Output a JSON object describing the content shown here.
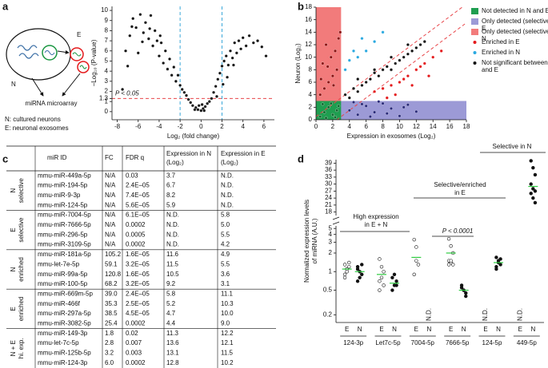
{
  "panel_labels": [
    "a",
    "b",
    "c",
    "d"
  ],
  "diagram": {
    "N": "N",
    "E": "E",
    "caption": "miRNA microarray",
    "legend": [
      "N: cultured neurons",
      "E: neuronal exosomes"
    ]
  },
  "chart_data": [
    {
      "type": "scatter",
      "x_label": "Log₂ (fold change)",
      "y_label": "−Log₁₀ (P-value)",
      "annotation": "P < 0.05",
      "xlim": [
        -8.5,
        7
      ],
      "xticks": [
        -8,
        -6,
        -4,
        -2,
        0,
        2,
        4,
        6
      ],
      "ylim": [
        -0.8,
        10.4
      ],
      "yticks": [
        0,
        1,
        1.3,
        2,
        3,
        4,
        5,
        6,
        7,
        8,
        9,
        10
      ],
      "vlines": [
        -2,
        2
      ],
      "vline_color": "#3aa7d9",
      "hline": 1.3,
      "hline_color": "#e8464a",
      "series": [
        {
          "color": "#111111",
          "x": [
            -7.5,
            -7,
            -6.8,
            -6.5,
            -6.2,
            -6,
            -5.8,
            -5.5,
            -5.3,
            -5,
            -4.8,
            -4.6,
            -4.4,
            -4.2,
            -4,
            -3.8,
            -3.6,
            -3.4,
            -3.2,
            -3,
            -2.8,
            -2.6,
            -2.4,
            -2.2,
            -2,
            -1.8,
            -1.6,
            -1.4,
            -1.2,
            -1,
            -5.6,
            -6.6,
            -4.9,
            -3.9,
            -7.2,
            -0.8,
            -0.5,
            -0.3,
            0,
            0.2,
            0.4,
            0.6,
            -0.2,
            0.3,
            0.8,
            -0.6,
            0.1,
            1,
            1.2,
            1.4,
            1.6,
            1.8,
            2,
            2.2,
            2.4,
            2.6,
            2.8,
            3,
            3.2,
            3.4,
            3.6,
            3.8,
            4,
            4.3,
            4.6,
            5,
            5.4,
            5.8,
            6.2,
            2.5,
            3.1,
            1.5,
            2.1
          ],
          "values": [
            2.2,
            4.5,
            7.5,
            9.2,
            8.3,
            5.8,
            9.6,
            7.8,
            8.8,
            7.2,
            9.5,
            6.5,
            8,
            7,
            5.5,
            6.8,
            4.8,
            6,
            4.2,
            5.2,
            3.6,
            4.4,
            3,
            3.6,
            2.6,
            2.2,
            1.9,
            1.6,
            1.2,
            0.9,
            6.9,
            8.4,
            8.2,
            7.5,
            6,
            0.6,
            0.4,
            0.2,
            0.1,
            0.3,
            0.5,
            0.8,
            0.6,
            0.1,
            1,
            0.2,
            0.7,
            1.3,
            1.9,
            2.5,
            3.2,
            3.8,
            4.5,
            5,
            5.5,
            4.6,
            6,
            5.3,
            6.8,
            5.8,
            7,
            6.2,
            7.3,
            6.5,
            7.5,
            6.8,
            7,
            6.4,
            5.5,
            3.4,
            4.6,
            1.5,
            2.7
          ]
        }
      ]
    },
    {
      "type": "scatter",
      "x_label": "Expression in exosomes (Log₂)",
      "y_label": "Neuron (Log₂)",
      "xlim": [
        0,
        18
      ],
      "xticks": [
        0,
        2,
        4,
        6,
        8,
        10,
        12,
        14,
        16,
        18
      ],
      "ylim": [
        0,
        18
      ],
      "yticks": [
        0,
        2,
        4,
        6,
        8,
        10,
        12,
        14,
        16,
        18
      ],
      "detection_threshold": 3,
      "diagonals": [
        0.5,
        -2.5
      ],
      "diagonal_color": "#e8464a",
      "series": [
        {
          "name": "Not detected in N and E",
          "marker": "square",
          "color": "#1f9e50",
          "point_color": "#0d6b2e",
          "x": [
            0.5,
            1,
            1.5,
            2,
            2.5,
            0.8,
            1.8,
            2.3,
            1.2,
            2.7
          ],
          "values": [
            0.5,
            1.2,
            2,
            0.8,
            1.5,
            2.5,
            2.6,
            0.4,
            0.3,
            2.2
          ]
        },
        {
          "name": "Only detected (selective) in E",
          "marker": "square",
          "color": "#9c9ad6",
          "point_color": "#2a2a7a",
          "x": [
            4,
            5,
            6,
            7,
            8,
            9,
            10,
            11,
            12,
            4.5,
            6.5,
            8.5,
            10.5,
            5.5,
            7.5
          ],
          "values": [
            1.5,
            0.8,
            2.2,
            1.2,
            2.6,
            1.8,
            0.6,
            2.4,
            1.3,
            2.8,
            0.5,
            1,
            2,
            2.5,
            2.9
          ]
        },
        {
          "name": "Only detected (selective) in N",
          "marker": "square",
          "color": "#f27b7b",
          "point_color": "#8b1010",
          "x": [
            0.5,
            1,
            1.5,
            2,
            2.5,
            0.8,
            1.8,
            2.3,
            1.2,
            2.7,
            0.6,
            1.4,
            2.1,
            2.9
          ],
          "values": [
            4,
            5,
            6,
            7,
            8,
            9,
            10,
            11,
            12,
            13,
            6.5,
            8.5,
            5.5,
            14
          ]
        },
        {
          "name": "Enriched in E",
          "marker": "dot",
          "color": "#e41a1c",
          "x": [
            7,
            8,
            9,
            10,
            11,
            12,
            13,
            14,
            9.5,
            10.5,
            11.5,
            12.5,
            8.5,
            13.5,
            15
          ],
          "values": [
            4.5,
            5,
            5.5,
            6,
            7,
            8,
            9,
            10,
            4,
            6.5,
            5.5,
            8.5,
            3.5,
            7,
            11
          ]
        },
        {
          "name": "Enriched in N",
          "marker": "dot",
          "color": "#2aa9e0",
          "x": [
            3.5,
            4,
            5,
            6,
            7,
            8,
            4.5,
            5.5
          ],
          "values": [
            8,
            9.5,
            10,
            11,
            12.5,
            14,
            11,
            13
          ]
        },
        {
          "name": "Not significant between N and E",
          "marker": "dot",
          "color": "#111111",
          "x": [
            3.5,
            4.5,
            5.5,
            6.5,
            7.5,
            8.5,
            9.5,
            10.5,
            11.5,
            12.5,
            4,
            5,
            6,
            7,
            8,
            9,
            10,
            11,
            12,
            13,
            5,
            7,
            9,
            11
          ],
          "values": [
            4,
            5,
            5.5,
            6.5,
            7,
            8.5,
            9,
            10,
            11,
            12,
            3.5,
            4.5,
            6,
            7.5,
            8,
            8,
            9.5,
            10.5,
            11.5,
            12.5,
            6.5,
            8,
            10,
            12
          ]
        }
      ]
    },
    {
      "type": "dot",
      "y_label": [
        "Normalized expression levels",
        "of miRNA (A.U.)"
      ],
      "log_scale": true,
      "categories": [
        "124-3p",
        "Let7c-5p",
        "7004-5p",
        "7666-5p",
        "124-5p",
        "449-5p"
      ],
      "ylim": [
        0.15,
        5.5
      ],
      "yticks": [
        0.2,
        0.5,
        1,
        2,
        3,
        4,
        5
      ],
      "ylim_top": [
        16.5,
        40.5
      ],
      "yticks_top": [
        18,
        21,
        24,
        27,
        30,
        33,
        36,
        39
      ],
      "nd_label": "N.D.",
      "mean_color": "#2ecc40",
      "annotations": [
        [
          "High expression",
          "in E + N"
        ],
        [
          "Selective/enriched",
          "in E"
        ],
        [
          "P < 0.0001"
        ],
        [
          "Selective in N"
        ]
      ],
      "series": [
        {
          "name": "E",
          "color": "#e41a1c",
          "values": [
            [
              1.3,
              1.1,
              1.2,
              0.9,
              1.0,
              1.4,
              0.8,
              1.1
            ],
            [
              1.6,
              1.2,
              0.6,
              0.5,
              0.8,
              1.0,
              0.7
            ],
            [
              3.3,
              2.5,
              1.3,
              0.9,
              1.5
            ],
            [
              3.4,
              2.6,
              2.0,
              1.5,
              1.4,
              1.3,
              1.3,
              1.5
            ],
            null,
            null
          ],
          "means": [
            1.1,
            0.9,
            1.7,
            2.0,
            null,
            null
          ]
        },
        {
          "name": "N",
          "color": "#111111",
          "values": [
            [
              1.2,
              1.0,
              0.9,
              1.1,
              0.8,
              1.3,
              0.7
            ],
            [
              0.8,
              0.6,
              0.7,
              0.5,
              0.9,
              0.6
            ],
            null,
            [
              0.55,
              0.5,
              0.45,
              0.6,
              0.5,
              0.4
            ],
            [
              1.7,
              1.5,
              1.3,
              1.2,
              1.4,
              1.6,
              1.1
            ],
            [
              40,
              37,
              34,
              30,
              28,
              27,
              26,
              24,
              22
            ]
          ],
          "means": [
            1.0,
            0.65,
            null,
            0.5,
            1.4,
            29
          ]
        }
      ]
    }
  ],
  "table": {
    "header": [
      "miR ID",
      "FC",
      "FDR q",
      [
        "Expression in N",
        "(Log₂)"
      ],
      [
        "Expression in E",
        "(Log₂)"
      ]
    ],
    "groups": [
      {
        "label": [
          "N",
          "selective"
        ],
        "color": "#1a9641",
        "rows": [
          [
            "mmu-miR-449a-5p",
            "N/A",
            "0.03",
            "3.7",
            "N.D."
          ],
          [
            "mmu-miR-194-5p",
            "N/A",
            "2.4E–05",
            "6.7",
            "N.D."
          ],
          [
            "mmu-miR-9-3p",
            "N/A",
            "7.4E–05",
            "8.2",
            "N.D."
          ],
          [
            "mmu-miR-124-5p",
            "N/A",
            "5.6E–05",
            "5.9",
            "N.D."
          ]
        ]
      },
      {
        "label": [
          "E",
          "selective"
        ],
        "color": "#d7191c",
        "rows": [
          [
            "mmu-miR-7004-5p",
            "N/A",
            "6.1E–05",
            "N.D.",
            "5.8"
          ],
          [
            "mmu-miR-7666-5p",
            "N/A",
            "0.0002",
            "N.D.",
            "5.0"
          ],
          [
            "mmu-miR-296-5p",
            "N/A",
            "0.0005",
            "N.D.",
            "5.5"
          ],
          [
            "mmu-miR-3109-5p",
            "N/A",
            "0.0002",
            "N.D.",
            "4.2"
          ]
        ]
      },
      {
        "label": [
          "N",
          "enriched"
        ],
        "color": "#2c2c8c",
        "rows": [
          [
            "mmu-miR-181a-5p",
            "105.2",
            "1.6E–05",
            "11.6",
            "4.9"
          ],
          [
            "mmu-let-7e-5p",
            "59.1",
            "3.2E–05",
            "11.5",
            "5.5"
          ],
          [
            "mmu-miR-99a-5p",
            "120.8",
            "1.6E–05",
            "10.5",
            "3.6"
          ],
          [
            "mmu-miR-100-5p",
            "68.2",
            "3.2E–05",
            "9.2",
            "3.1"
          ]
        ]
      },
      {
        "label": [
          "E",
          "enriched"
        ],
        "color": "#f0a030",
        "rows": [
          [
            "mmu-miR-669m-5p",
            "39.0",
            "2.4E–05",
            "5.8",
            "11.1"
          ],
          [
            "mmu-miR-466f",
            "35.3",
            "2.5E–05",
            "5.2",
            "10.3"
          ],
          [
            "mmu-miR-297a-5p",
            "38.5",
            "4.5E–05",
            "4.7",
            "10.0"
          ],
          [
            "mmu-miR-3082-5p",
            "25.4",
            "0.0002",
            "4.4",
            "9.0"
          ]
        ]
      },
      {
        "label": [
          "N + E",
          "hi. exp."
        ],
        "color": "#e0208c",
        "rows": [
          [
            "mmu-miR-149-3p",
            "1.8",
            "0.02",
            "11.3",
            "12.2"
          ],
          [
            "mmu-let-7c-5p",
            "2.8",
            "0.007",
            "13.6",
            "12.1"
          ],
          [
            "mmu-miR-125b-5p",
            "3.2",
            "0.003",
            "13.1",
            "11.5"
          ],
          [
            "mmu-miR-124-3p",
            "6.0",
            "0.0002",
            "12.8",
            "10.2"
          ]
        ]
      }
    ]
  }
}
